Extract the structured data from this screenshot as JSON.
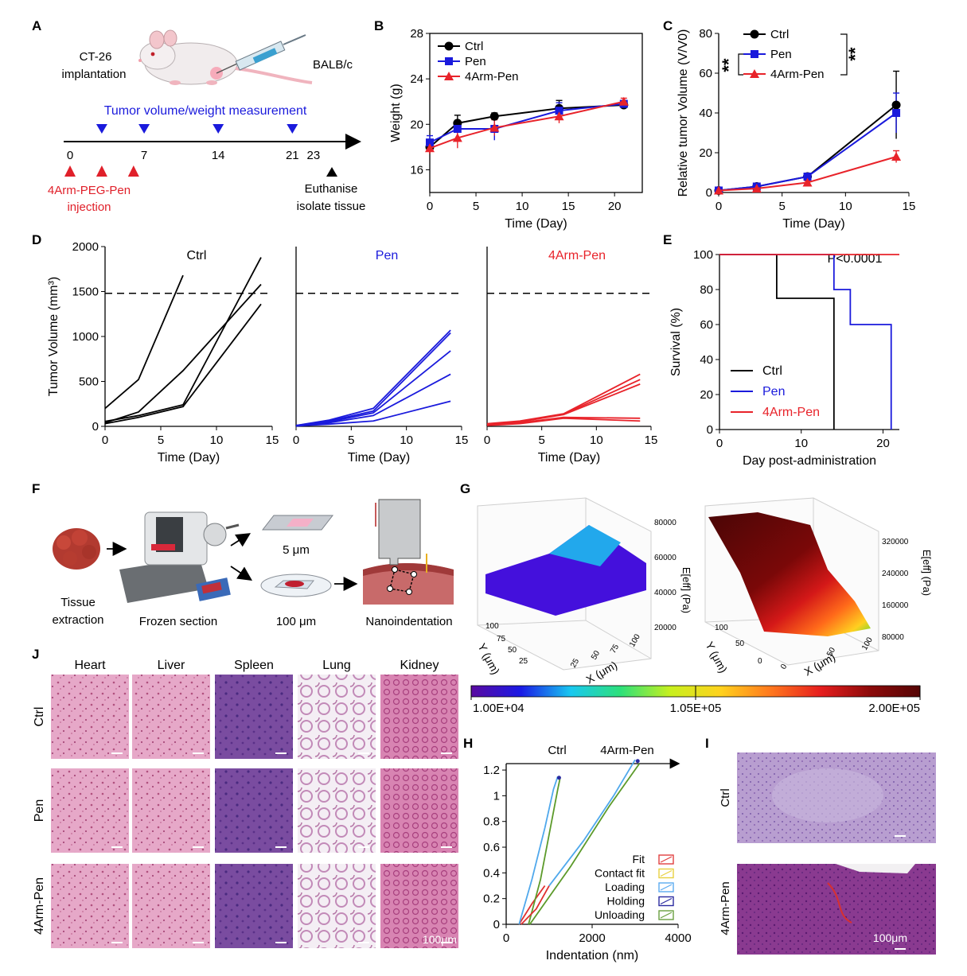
{
  "panel_labels": [
    "A",
    "B",
    "C",
    "D",
    "E",
    "F",
    "G",
    "H",
    "I",
    "J"
  ],
  "schematic_a": {
    "implant_label_1": "CT-26",
    "implant_label_2": "implantation",
    "strain": "BALB/c",
    "measurement_label": "Tumor volume/weight measurement",
    "measure_days": [
      "3",
      "7",
      "14",
      "21"
    ],
    "timeline_ticks": [
      "0",
      "7",
      "14",
      "21",
      "23"
    ],
    "injection_days": [
      "0",
      "3",
      "6"
    ],
    "injection_label_1": "4Arm-PEG-Pen",
    "injection_label_2": "injection",
    "end_label_1": "Euthanise",
    "end_label_2": "isolate tissue",
    "colors": {
      "measure": "#1a1adc",
      "injection": "#e0202a",
      "end": "#000000"
    }
  },
  "schematic_f": {
    "step_1_1": "Tissue",
    "step_1_2": "extraction",
    "step_2": "Frozen section",
    "thin_section": "5 μm",
    "thick_section": "100 μm",
    "step_4": "Nanoindentation"
  },
  "series_colors": {
    "Ctrl": "#000000",
    "Pen": "#1a1adc",
    "4Arm-Pen": "#e8232a"
  },
  "chart_data": [
    {
      "id": "B",
      "type": "line",
      "xlabel": "Time (Day)",
      "ylabel": "Weight (g)",
      "xlim": [
        0,
        23
      ],
      "ylim": [
        14,
        28
      ],
      "xticks": [
        0,
        5,
        10,
        15,
        20
      ],
      "yticks": [
        16,
        20,
        24,
        28
      ],
      "legend": [
        "Ctrl",
        "Pen",
        "4Arm-Pen"
      ],
      "legend_position": "top-left",
      "series": [
        {
          "name": "Ctrl",
          "x": [
            0,
            3,
            7,
            14,
            21
          ],
          "y": [
            18.0,
            20.1,
            20.7,
            21.4,
            21.7
          ],
          "err": [
            0.6,
            0.7,
            0.3,
            0.7,
            0.3
          ]
        },
        {
          "name": "Pen",
          "x": [
            0,
            3,
            7,
            14,
            21
          ],
          "y": [
            18.4,
            19.6,
            19.6,
            21.2,
            21.8
          ],
          "err": [
            0.6,
            0.6,
            1.0,
            0.7,
            0.3
          ]
        },
        {
          "name": "4Arm-Pen",
          "x": [
            0,
            3,
            7,
            14,
            21
          ],
          "y": [
            17.9,
            18.8,
            19.7,
            20.7,
            22.0
          ],
          "err": [
            0.5,
            0.9,
            0.7,
            0.6,
            0.3
          ]
        }
      ]
    },
    {
      "id": "C",
      "type": "line",
      "xlabel": "Time (Day)",
      "ylabel": "Relative tumor Volume (V/V0)",
      "xlim": [
        0,
        15
      ],
      "ylim": [
        0,
        80
      ],
      "xticks": [
        0,
        5,
        10,
        15
      ],
      "yticks": [
        0,
        20,
        40,
        60,
        80
      ],
      "legend": [
        "Ctrl",
        "Pen",
        "4Arm-Pen"
      ],
      "legend_position": "top-center",
      "significance_left": "**",
      "significance_right": "**",
      "series": [
        {
          "name": "Ctrl",
          "x": [
            0,
            3,
            7,
            14
          ],
          "y": [
            1,
            3,
            8,
            44
          ],
          "err": [
            0.3,
            0.6,
            1.0,
            17
          ]
        },
        {
          "name": "Pen",
          "x": [
            0,
            3,
            7,
            14
          ],
          "y": [
            1,
            3,
            8,
            40
          ],
          "err": [
            0.3,
            0.6,
            1.0,
            10
          ]
        },
        {
          "name": "4Arm-Pen",
          "x": [
            0,
            3,
            7,
            14
          ],
          "y": [
            1,
            2,
            5,
            18
          ],
          "err": [
            0.3,
            0.4,
            0.8,
            3
          ]
        }
      ]
    },
    {
      "id": "D",
      "type": "line",
      "xlabel": "Time (Day)",
      "ylabel": "Tumor Volume (mm³)",
      "xlim": [
        0,
        15
      ],
      "ylim": [
        0,
        2000
      ],
      "xticks": [
        0,
        5,
        10,
        15
      ],
      "yticks": [
        0,
        500,
        1000,
        1500,
        2000
      ],
      "threshold": 1480,
      "panels": [
        {
          "title": "Ctrl",
          "lines": [
            {
              "x": [
                0,
                3,
                7
              ],
              "y": [
                200,
                520,
                1680
              ]
            },
            {
              "x": [
                0,
                3,
                7,
                14
              ],
              "y": [
                40,
                160,
                620,
                1580
              ]
            },
            {
              "x": [
                0,
                3,
                7,
                14
              ],
              "y": [
                55,
                120,
                240,
                1880
              ]
            },
            {
              "x": [
                0,
                3,
                7,
                14
              ],
              "y": [
                30,
                100,
                220,
                1360
              ]
            }
          ]
        },
        {
          "title": "Pen",
          "lines": [
            {
              "x": [
                0,
                3,
                7,
                14
              ],
              "y": [
                10,
                70,
                200,
                1070
              ]
            },
            {
              "x": [
                0,
                3,
                7,
                14
              ],
              "y": [
                10,
                60,
                170,
                1040
              ]
            },
            {
              "x": [
                0,
                3,
                7,
                14
              ],
              "y": [
                8,
                50,
                150,
                840
              ]
            },
            {
              "x": [
                0,
                3,
                7,
                14
              ],
              "y": [
                6,
                40,
                120,
                580
              ]
            },
            {
              "x": [
                0,
                3,
                7,
                14
              ],
              "y": [
                4,
                25,
                60,
                280
              ]
            }
          ]
        },
        {
          "title": "4Arm-Pen",
          "lines": [
            {
              "x": [
                0,
                3,
                7,
                14
              ],
              "y": [
                30,
                60,
                140,
                580
              ]
            },
            {
              "x": [
                0,
                3,
                7,
                14
              ],
              "y": [
                25,
                55,
                135,
                520
              ]
            },
            {
              "x": [
                0,
                3,
                7,
                14
              ],
              "y": [
                20,
                50,
                130,
                470
              ]
            },
            {
              "x": [
                0,
                3,
                7,
                14
              ],
              "y": [
                15,
                40,
                100,
                90
              ]
            },
            {
              "x": [
                0,
                3,
                7,
                14
              ],
              "y": [
                10,
                30,
                90,
                60
              ]
            }
          ]
        }
      ]
    },
    {
      "id": "E",
      "type": "line",
      "xlabel": "Day post-administration",
      "ylabel": "Survival (%)",
      "xlim": [
        0,
        22
      ],
      "ylim": [
        0,
        100
      ],
      "xticks": [
        0,
        10,
        20
      ],
      "yticks": [
        0,
        20,
        40,
        60,
        80,
        100
      ],
      "annotation": "P<0.0001",
      "legend": [
        "Ctrl",
        "Pen",
        "4Arm-Pen"
      ],
      "legend_position": "bottom-left",
      "series": [
        {
          "name": "Ctrl",
          "steps": [
            [
              0,
              100
            ],
            [
              7,
              75
            ],
            [
              14,
              0
            ]
          ]
        },
        {
          "name": "Pen",
          "steps": [
            [
              0,
              100
            ],
            [
              14,
              80
            ],
            [
              16,
              60
            ],
            [
              21,
              0
            ]
          ]
        },
        {
          "name": "4Arm-Pen",
          "steps": [
            [
              0,
              100
            ],
            [
              22,
              100
            ]
          ]
        }
      ]
    },
    {
      "id": "G",
      "type": "heatmap",
      "zlabel": "E[eff] (Pa)",
      "xlabel": "X (μm)",
      "ylabel": "Y (μm)",
      "left_z_ticks": [
        "20000",
        "40000",
        "60000",
        "80000"
      ],
      "left_x_ticks": [
        "0",
        "25",
        "50",
        "75",
        "100"
      ],
      "left_y_ticks": [
        "25",
        "50",
        "75",
        "100"
      ],
      "right_z_ticks": [
        "80000",
        "160000",
        "240000",
        "320000"
      ],
      "right_x_ticks": [
        "0",
        "50",
        "100"
      ],
      "right_y_ticks": [
        "0",
        "50",
        "100"
      ],
      "colorbar_labels": [
        "1.00E+04",
        "1.05E+05",
        "2.00E+05"
      ],
      "colorbar_colors": [
        "#5a0aa0",
        "#1a1ae6",
        "#19c8f0",
        "#2de07a",
        "#c8f01e",
        "#ffd21e",
        "#ff781e",
        "#e61e1e",
        "#8c0a0a",
        "#550505"
      ]
    },
    {
      "id": "H",
      "type": "line",
      "xlabel": "Indentation (nm)",
      "ylabel": "",
      "xlim": [
        0,
        4000
      ],
      "ylim": [
        0,
        1.25
      ],
      "xticks": [
        0,
        2000,
        4000
      ],
      "yticks": [
        0,
        0.2,
        0.4,
        0.6,
        0.8,
        1,
        1.2
      ],
      "tick_labels_y": [
        "0",
        "0.2",
        "0.4",
        "0.6",
        "0.8",
        "1",
        "1.2"
      ],
      "group_labels": [
        "Ctrl",
        "4Arm-Pen"
      ],
      "legend": [
        "Fit",
        "Contact fit",
        "Loading",
        "Holding",
        "Unloading"
      ],
      "legend_colors": [
        "#e04040",
        "#e8d040",
        "#5aaaf0",
        "#2a2aa0",
        "#6aa040"
      ],
      "series": [
        {
          "name": "Ctrl-fit",
          "color": "#e03030",
          "x": [
            300,
            600,
            900
          ],
          "y": [
            0,
            0.16,
            0.3
          ]
        },
        {
          "name": "Ctrl-loading",
          "color": "#4fa8ec",
          "x": [
            300,
            600,
            900,
            1100,
            1200
          ],
          "y": [
            0,
            0.35,
            0.75,
            1.05,
            1.15
          ]
        },
        {
          "name": "Ctrl-unloading",
          "color": "#5c9a2a",
          "x": [
            520,
            800,
            1000,
            1200,
            1250
          ],
          "y": [
            0,
            0.35,
            0.7,
            1.05,
            1.13
          ]
        },
        {
          "name": "4Arm-fit",
          "color": "#e03030",
          "x": [
            350,
            700,
            1000
          ],
          "y": [
            0,
            0.12,
            0.3
          ]
        },
        {
          "name": "4Arm-loading",
          "color": "#4fa8ec",
          "x": [
            1000,
            1800,
            2500,
            3000
          ],
          "y": [
            0.3,
            0.65,
            1.0,
            1.28
          ]
        },
        {
          "name": "4Arm-unloading",
          "color": "#5c9a2a",
          "x": [
            550,
            1500,
            2400,
            3100
          ],
          "y": [
            0,
            0.45,
            0.92,
            1.25
          ]
        }
      ]
    }
  ],
  "histology_j": {
    "columns": [
      "Heart",
      "Liver",
      "Spleen",
      "Lung",
      "Kidney"
    ],
    "rows": [
      "Ctrl",
      "Pen",
      "4Arm-Pen"
    ],
    "scale_label": "100μm"
  },
  "histology_i": {
    "rows": [
      "Ctrl",
      "4Arm-Pen"
    ],
    "scale_label": "100μm"
  }
}
